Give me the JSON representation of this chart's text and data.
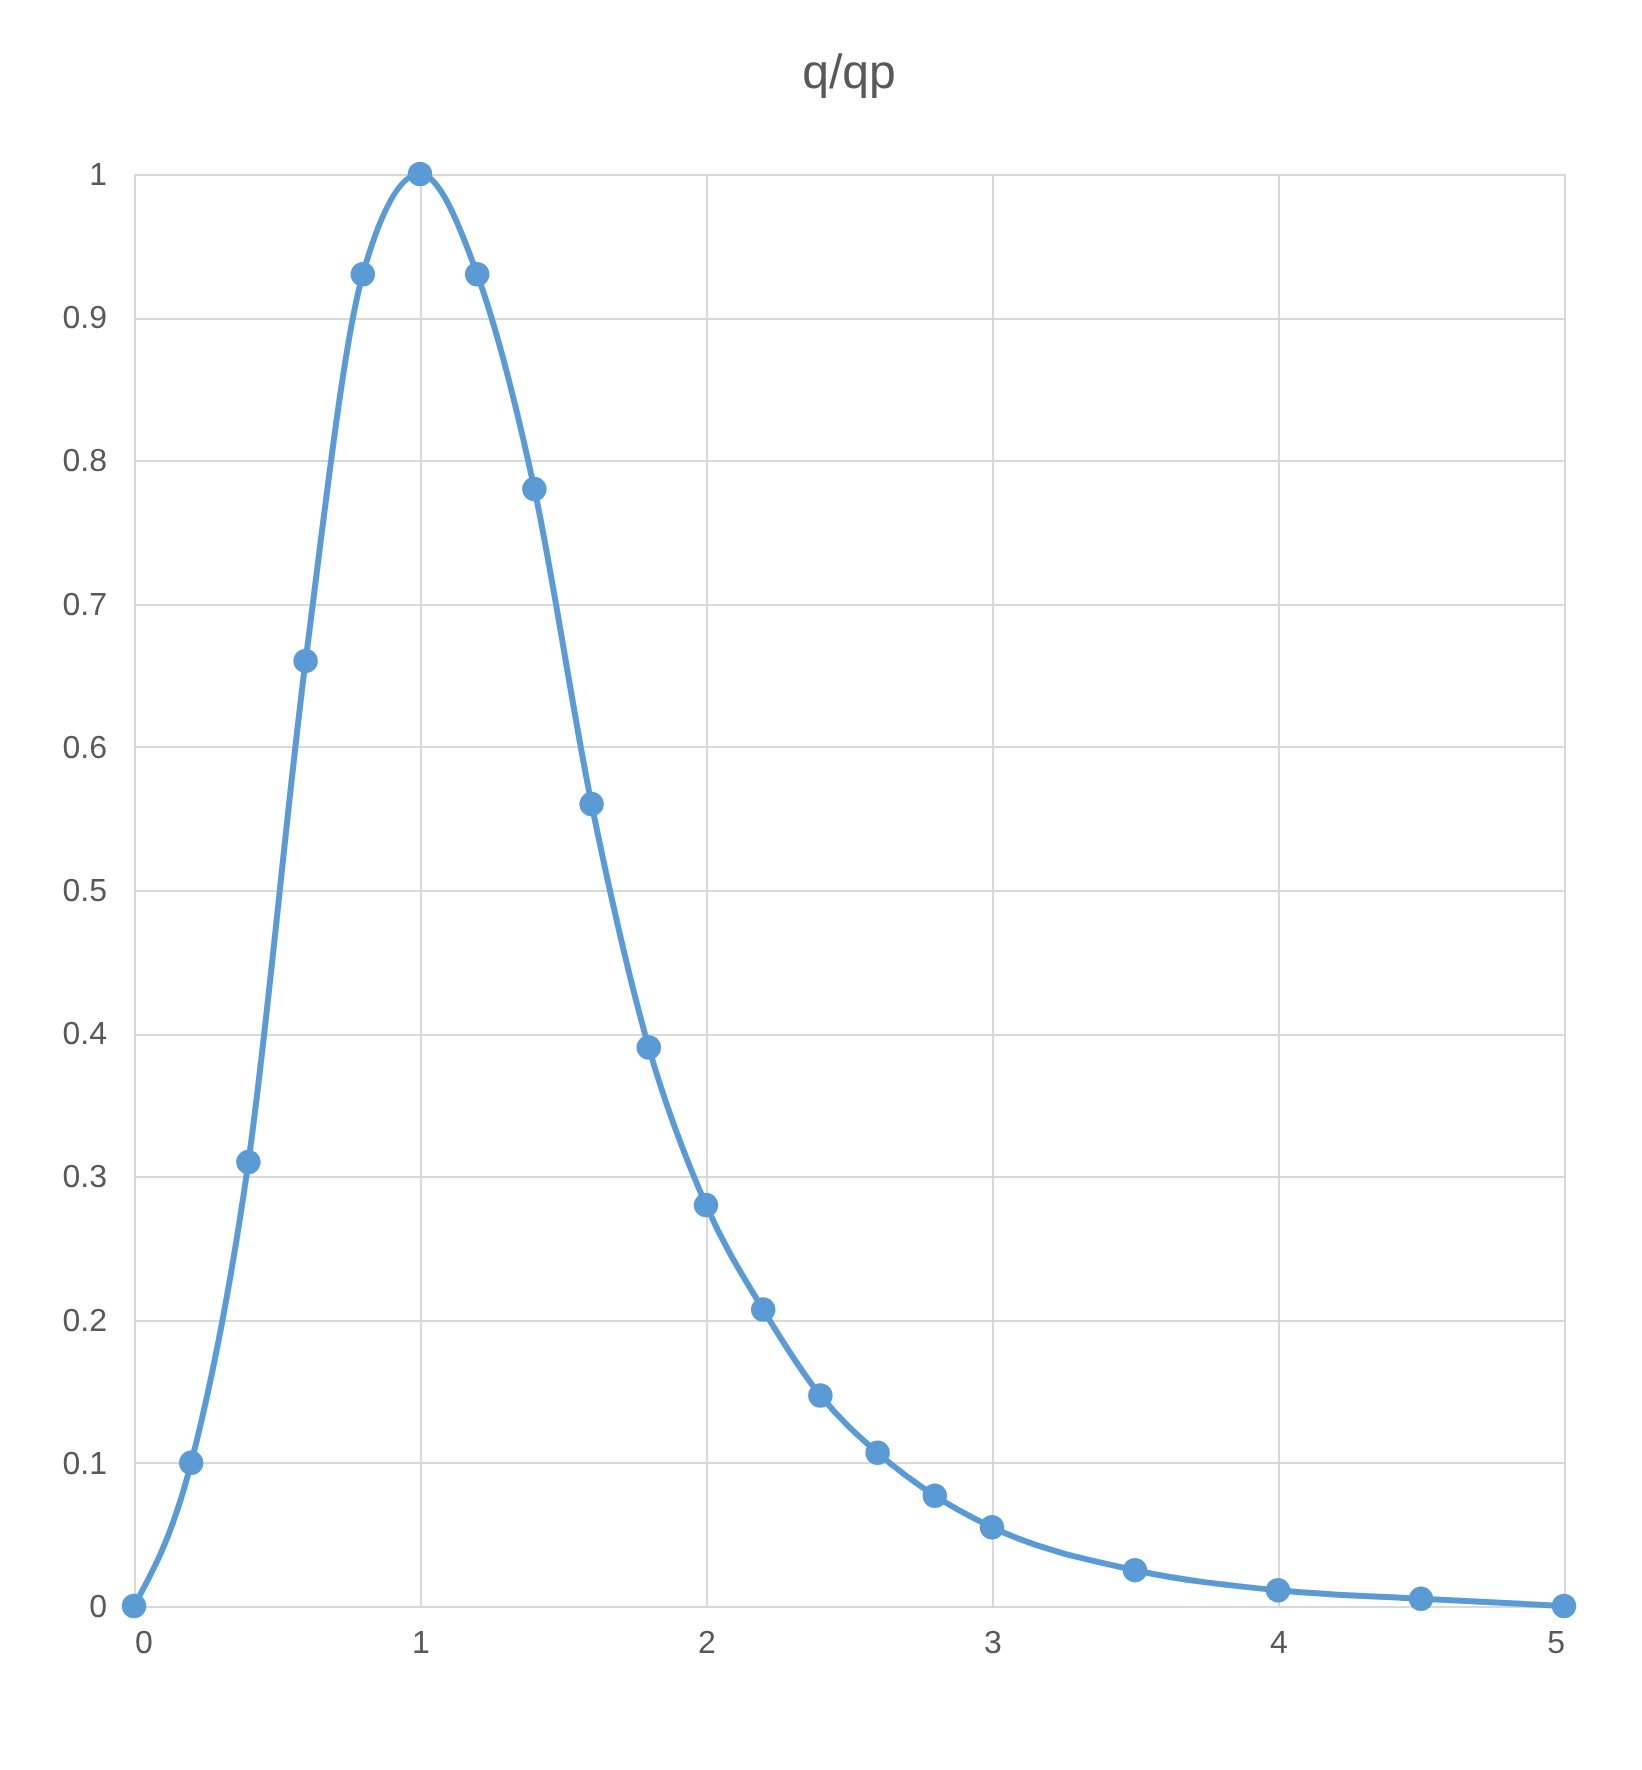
{
  "chart_data": {
    "type": "line",
    "title": "q/qp",
    "x": [
      0,
      0.2,
      0.4,
      0.6,
      0.8,
      1,
      1.2,
      1.4,
      1.6,
      1.8,
      2,
      2.2,
      2.4,
      2.6,
      2.8,
      3,
      3.5,
      4,
      4.5,
      5
    ],
    "series": [
      {
        "color": "#5b9bd5",
        "values": [
          0,
          0.1,
          0.31,
          0.66,
          0.93,
          1,
          0.93,
          0.78,
          0.56,
          0.39,
          0.28,
          0.207,
          0.147,
          0.107,
          0.077,
          0.055,
          0.025,
          0.011,
          0.005,
          0
        ]
      }
    ],
    "xlim": [
      0,
      5
    ],
    "xticks": [
      0,
      1,
      2,
      3,
      4,
      5
    ],
    "ylim": [
      0,
      1
    ],
    "yticks": [
      0,
      0.1,
      0.2,
      0.3,
      0.4,
      0.5,
      0.6,
      0.7,
      0.8,
      0.9,
      1
    ],
    "grid": true,
    "marker": "circle",
    "line_style": "solid"
  }
}
